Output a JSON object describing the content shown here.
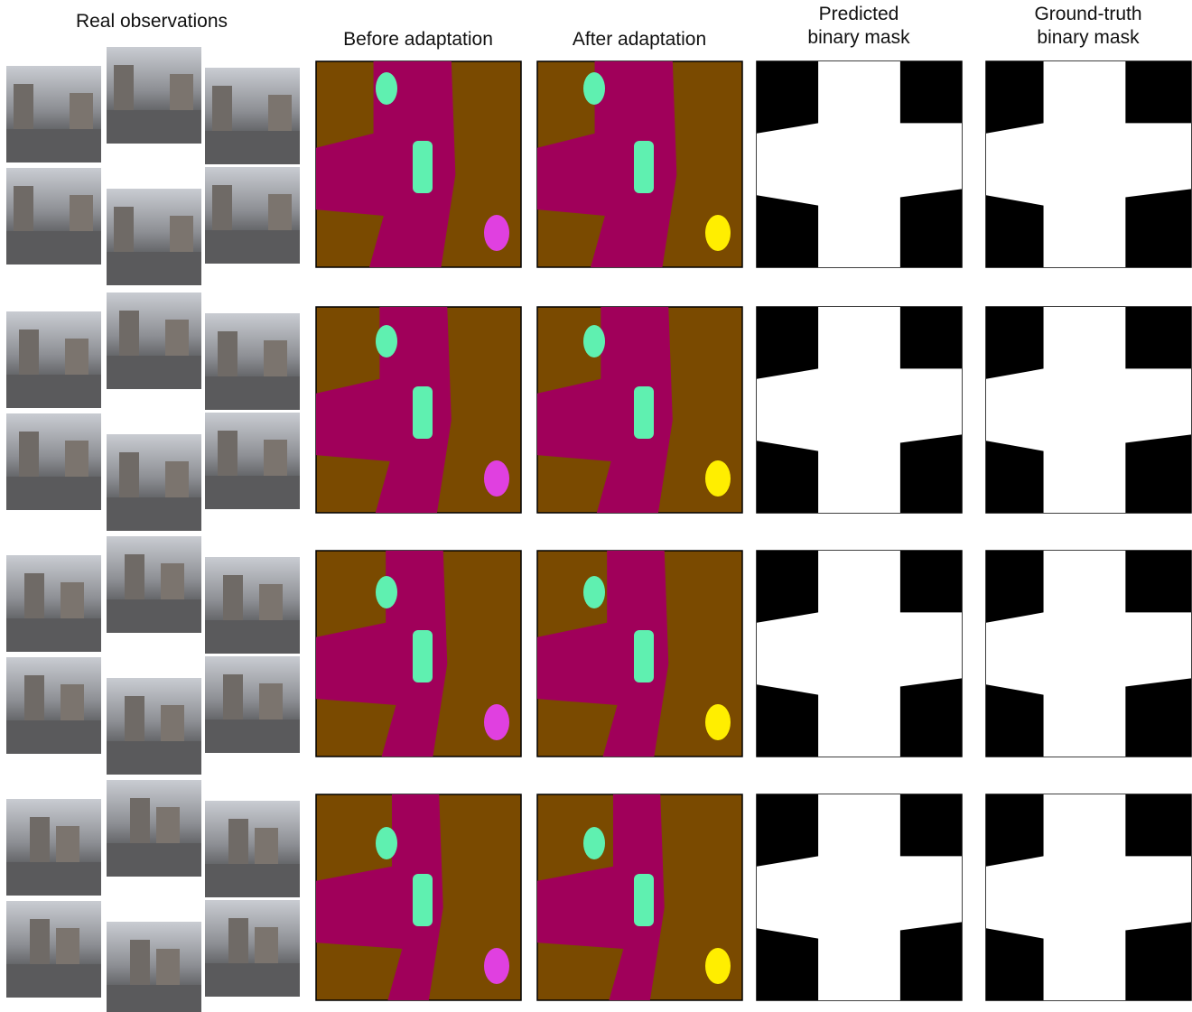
{
  "header": {
    "real_observations": "Real observations",
    "before_adaptation": "Before adaptation",
    "after_adaptation": "After adaptation",
    "predicted_mask": [
      "Predicted",
      "binary mask"
    ],
    "ground_truth_mask": [
      "Ground-truth",
      "binary mask"
    ]
  }
}
